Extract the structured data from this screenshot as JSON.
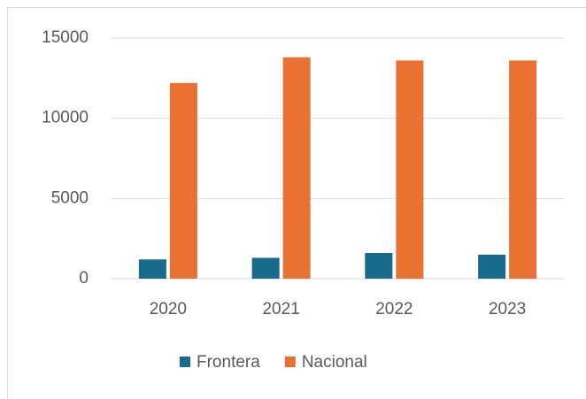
{
  "chart_data": {
    "type": "bar",
    "categories": [
      "2020",
      "2021",
      "2022",
      "2023"
    ],
    "series": [
      {
        "name": "Frontera",
        "color": "#196b8c",
        "values": [
          1200,
          1300,
          1600,
          1500
        ]
      },
      {
        "name": "Nacional",
        "color": "#e97132",
        "values": [
          12200,
          13800,
          13600,
          13600
        ]
      }
    ],
    "ylim": [
      0,
      15000
    ],
    "yticks": [
      0,
      5000,
      10000,
      15000
    ],
    "grid": true,
    "legend": "bottom"
  }
}
